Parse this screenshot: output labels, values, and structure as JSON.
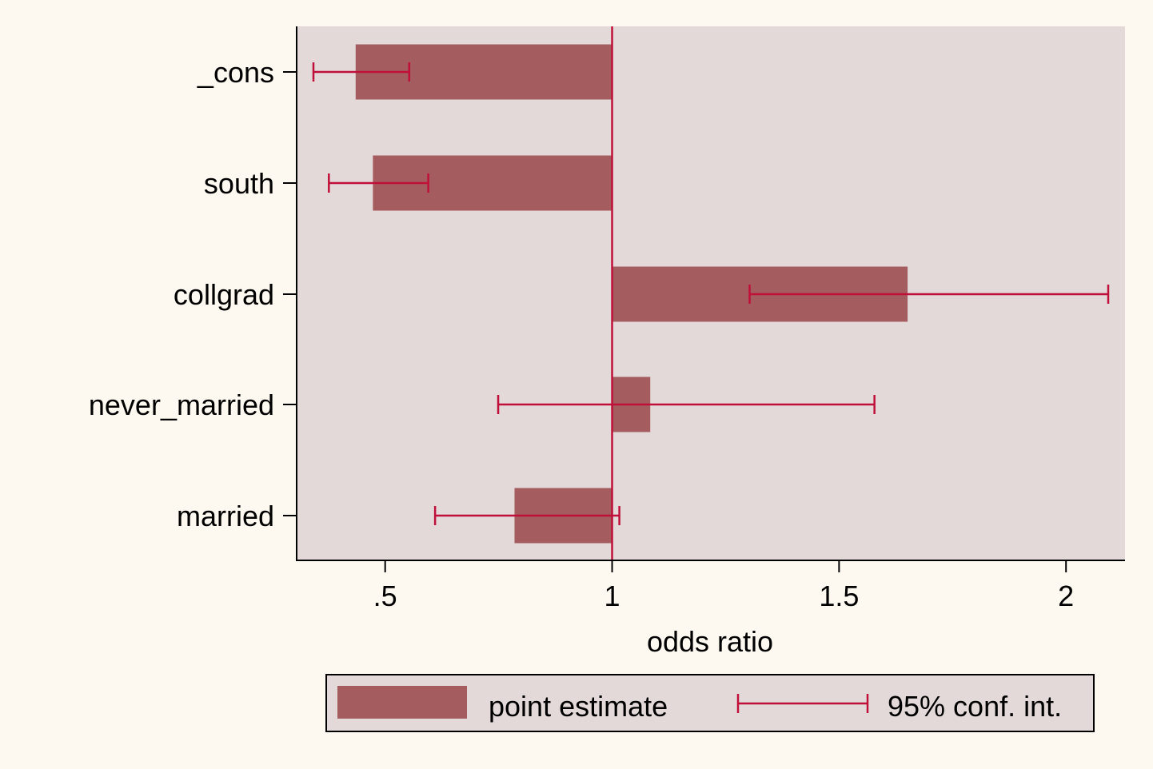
{
  "chart_data": {
    "type": "bar",
    "orientation": "horizontal",
    "categories": [
      "_cons",
      "south",
      "collgrad",
      "never_married",
      "married"
    ],
    "series": [
      {
        "name": "point estimate",
        "kind": "bar",
        "base": 1,
        "values": [
          0.435,
          0.473,
          1.651,
          1.084,
          0.785
        ]
      },
      {
        "name": "95% conf. int.",
        "kind": "errorbar",
        "low": [
          0.342,
          0.376,
          1.303,
          0.749,
          0.61
        ],
        "high": [
          0.553,
          0.595,
          2.093,
          1.578,
          1.016
        ]
      }
    ],
    "xlabel": "odds ratio",
    "ylabel": "",
    "xlim": [
      0.305,
      2.13
    ],
    "xticks": [
      0.5,
      1,
      1.5,
      2
    ],
    "xtick_labels": [
      ".5",
      "1",
      "1.5",
      "2"
    ],
    "reference_line": 1,
    "grid": false,
    "legend": {
      "position": "bottom",
      "entries": [
        "point estimate",
        "95% conf. int."
      ]
    },
    "colors": {
      "background": "#fef9f0",
      "plot_area": "#e3d9d9",
      "bar": "#a45c5e",
      "ci": "#c0103a",
      "axis": "#000000"
    }
  }
}
